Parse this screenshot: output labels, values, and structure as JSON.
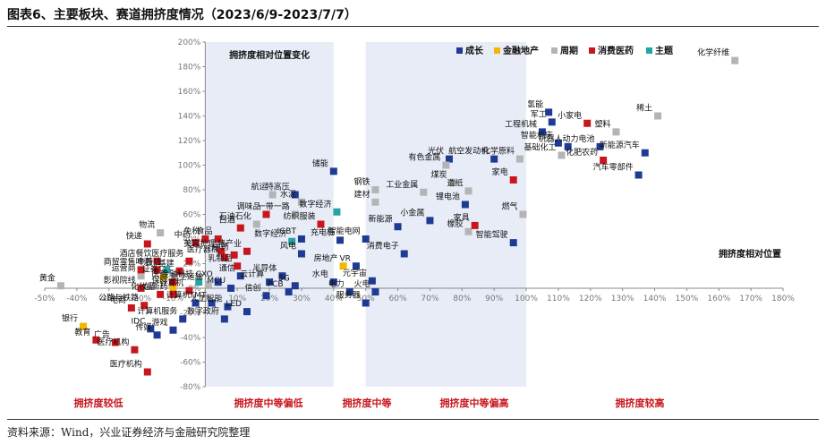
{
  "title": "图表6、主要板块、赛道拥挤度情况（2023/6/9-2023/7/7）",
  "source": "资料来源：Wind，兴业证券经济与金融研究院整理",
  "chart_data": {
    "type": "scatter",
    "xlim": [
      -50,
      180
    ],
    "ylim": [
      -80,
      200
    ],
    "xticks": [
      "-50%",
      "-40%",
      "-30%",
      "-20%",
      "-10%",
      "0%",
      "10%",
      "20%",
      "30%",
      "40%",
      "50%",
      "60%",
      "70%",
      "80%",
      "90%",
      "100%",
      "110%",
      "120%",
      "130%",
      "140%",
      "150%",
      "160%",
      "170%",
      "180%"
    ],
    "yticks": [
      "200%",
      "180%",
      "160%",
      "140%",
      "120%",
      "100%",
      "80%",
      "60%",
      "40%",
      "20%",
      "0%",
      "-20%",
      "-40%",
      "-60%",
      "-80%"
    ],
    "grid": false,
    "legend_position": "top-right",
    "x_axis_title": "拥挤度相对位置",
    "bands": [
      {
        "x0": 0,
        "x1": 40,
        "label": "拥挤度相对位置变化"
      },
      {
        "x0": 50,
        "x1": 100,
        "label": ""
      }
    ],
    "zone_labels": [
      "拥挤度较低",
      "拥挤度中等偏低",
      "拥挤度中等",
      "拥挤度中等偏高",
      "拥挤度较高"
    ],
    "colors": {
      "成长": "#1f3a93",
      "金融地产": "#f2b701",
      "周期": "#b4b4b4",
      "消费医药": "#c8161d",
      "主题": "#25a4a4"
    },
    "series": [
      {
        "name": "成长",
        "points": [
          {
            "x": 108,
            "y": 135,
            "label": "军工"
          },
          {
            "x": 113,
            "y": 115,
            "label": "机器人"
          },
          {
            "x": 123,
            "y": 115,
            "label": "动力电池"
          },
          {
            "x": 105,
            "y": 127,
            "label": "工程机械"
          },
          {
            "x": 110,
            "y": 118,
            "label": "智能机床"
          },
          {
            "x": 107,
            "y": 143,
            "label": "氢能"
          },
          {
            "x": 137,
            "y": 110,
            "label": "新能源汽车"
          },
          {
            "x": 135,
            "y": 92,
            "label": "汽车零部件"
          },
          {
            "x": 90,
            "y": 105,
            "label": "航空发动机"
          },
          {
            "x": 76,
            "y": 105,
            "label": "光伏"
          },
          {
            "x": 81,
            "y": 68,
            "label": "锂电池"
          },
          {
            "x": 70,
            "y": 55,
            "label": "小金属"
          },
          {
            "x": 60,
            "y": 50,
            "label": "新能源"
          },
          {
            "x": 96,
            "y": 37,
            "label": "智能驾驶"
          },
          {
            "x": 62,
            "y": 28,
            "label": "消费电子"
          },
          {
            "x": 42,
            "y": 39,
            "label": "充电桩"
          },
          {
            "x": 30,
            "y": 40,
            "label": "IGBT"
          },
          {
            "x": 30,
            "y": 28,
            "label": "风电"
          },
          {
            "x": 50,
            "y": 40,
            "label": "智能电网"
          },
          {
            "x": 28,
            "y": 76,
            "label": "特高压"
          },
          {
            "x": 40,
            "y": 95,
            "label": "储能"
          },
          {
            "x": 47,
            "y": 18,
            "label": "VR"
          },
          {
            "x": 52,
            "y": 6,
            "label": "元宇宙"
          },
          {
            "x": 40,
            "y": 5,
            "label": "水电"
          },
          {
            "x": 53,
            "y": -3,
            "label": "火电"
          },
          {
            "x": 45,
            "y": -3,
            "label": "电力"
          },
          {
            "x": 50,
            "y": -12,
            "label": "服务器"
          },
          {
            "x": 28,
            "y": 2,
            "label": "5G"
          },
          {
            "x": 26,
            "y": -3,
            "label": "PCB"
          },
          {
            "x": 24,
            "y": 10,
            "label": "半导体"
          },
          {
            "x": 20,
            "y": 5,
            "label": "云计算"
          },
          {
            "x": 19,
            "y": -6,
            "label": "信创"
          },
          {
            "x": 11,
            "y": 10,
            "label": "通信"
          },
          {
            "x": 13,
            "y": -19,
            "label": "LED"
          },
          {
            "x": 7,
            "y": -15,
            "label": "人工智能"
          },
          {
            "x": 2,
            "y": -12,
            "label": "TMT"
          },
          {
            "x": -3,
            "y": -12,
            "label": "计算机"
          },
          {
            "x": 6,
            "y": -25,
            "label": "数字政府"
          },
          {
            "x": 8,
            "y": 0,
            "label": "MCU"
          },
          {
            "x": 4,
            "y": 5,
            "label": "CXO"
          },
          {
            "x": -7,
            "y": -25,
            "label": "计算机服务"
          },
          {
            "x": -10,
            "y": -34,
            "label": "游戏"
          },
          {
            "x": -17,
            "y": -33,
            "label": "IDC"
          },
          {
            "x": -15,
            "y": -38,
            "label": "传媒"
          }
        ]
      },
      {
        "name": "金融地产",
        "points": [
          {
            "x": -38,
            "y": -31,
            "label": "银行"
          },
          {
            "x": -13,
            "y": 9,
            "label": "证券"
          },
          {
            "x": -10,
            "y": 0,
            "label": "保险"
          },
          {
            "x": 43,
            "y": 18,
            "label": "房地产"
          }
        ]
      },
      {
        "name": "周期",
        "points": [
          {
            "x": 165,
            "y": 185,
            "label": "化学纤维"
          },
          {
            "x": 141,
            "y": 140,
            "label": "稀土"
          },
          {
            "x": 128,
            "y": 127,
            "label": "塑料"
          },
          {
            "x": 111,
            "y": 108,
            "label": "基础化工"
          },
          {
            "x": 98,
            "y": 105,
            "label": "化学原料"
          },
          {
            "x": 75,
            "y": 100,
            "label": "有色金属"
          },
          {
            "x": 77,
            "y": 86,
            "label": "煤炭"
          },
          {
            "x": 82,
            "y": 79,
            "label": "造纸"
          },
          {
            "x": 68,
            "y": 78,
            "label": "工业金属"
          },
          {
            "x": 53,
            "y": 80,
            "label": "钢铁"
          },
          {
            "x": 53,
            "y": 70,
            "label": "建材"
          },
          {
            "x": 30,
            "y": 70,
            "label": "水泥"
          },
          {
            "x": 28,
            "y": 60,
            "label": "一带一路"
          },
          {
            "x": 21,
            "y": 76,
            "label": "航运"
          },
          {
            "x": 16,
            "y": 52,
            "label": "石油石化"
          },
          {
            "x": -14,
            "y": 45,
            "label": "物流"
          },
          {
            "x": 99,
            "y": 60,
            "label": "燃气"
          },
          {
            "x": 82,
            "y": 46,
            "label": "橡胶"
          },
          {
            "x": 1,
            "y": 3,
            "label": "航空运输"
          },
          {
            "x": -20,
            "y": 10,
            "label": "运营商"
          },
          {
            "x": -45,
            "y": 2,
            "label": "黄金"
          }
        ]
      },
      {
        "name": "消费医药",
        "points": [
          {
            "x": 119,
            "y": 134,
            "label": "小家电"
          },
          {
            "x": 124,
            "y": 104,
            "label": "化肥农药"
          },
          {
            "x": 96,
            "y": 88,
            "label": "家电"
          },
          {
            "x": 84,
            "y": 51,
            "label": "家具"
          },
          {
            "x": 36,
            "y": 52,
            "label": "纺织服装"
          },
          {
            "x": 19,
            "y": 60,
            "label": "调味品"
          },
          {
            "x": 11,
            "y": 49,
            "label": "白酒"
          },
          {
            "x": 13,
            "y": 30,
            "label": "猪产业"
          },
          {
            "x": 5,
            "y": 30,
            "label": "美容护理"
          },
          {
            "x": 4,
            "y": 40,
            "label": "食品"
          },
          {
            "x": 0,
            "y": 40,
            "label": "免税"
          },
          {
            "x": -3,
            "y": 37,
            "label": "中药"
          },
          {
            "x": 6,
            "y": 25,
            "label": "医疗器械"
          },
          {
            "x": 9,
            "y": 27,
            "label": "中药"
          },
          {
            "x": 10,
            "y": 18,
            "label": "乳制品"
          },
          {
            "x": -5,
            "y": 22,
            "label": "医疗服务"
          },
          {
            "x": -8,
            "y": 14,
            "label": "基建"
          },
          {
            "x": -18,
            "y": 36,
            "label": "快递"
          },
          {
            "x": -15,
            "y": 22,
            "label": "酒店餐饮"
          },
          {
            "x": -20,
            "y": 15,
            "label": "商贸零售"
          },
          {
            "x": -15,
            "y": 15,
            "label": "啤酒"
          },
          {
            "x": -20,
            "y": 0,
            "label": "影视院线"
          },
          {
            "x": -10,
            "y": 5,
            "label": "医药"
          },
          {
            "x": -14,
            "y": -5,
            "label": "化妆品"
          },
          {
            "x": -19,
            "y": -14,
            "label": "公路与铁路"
          },
          {
            "x": -23,
            "y": -16,
            "label": "电商"
          },
          {
            "x": -10,
            "y": -5,
            "label": "创新药"
          },
          {
            "x": -5,
            "y": -2,
            "label": "计算机"
          },
          {
            "x": -28,
            "y": -44,
            "label": "广告"
          },
          {
            "x": -34,
            "y": -42,
            "label": "教育"
          },
          {
            "x": -22,
            "y": -50,
            "label": "医疗机构"
          },
          {
            "x": -18,
            "y": -68,
            "label": "医疗机构"
          }
        ]
      },
      {
        "name": "主题",
        "points": [
          {
            "x": 41,
            "y": 62,
            "label": "数字经济"
          },
          {
            "x": 27,
            "y": 38,
            "label": "数字经济"
          },
          {
            "x": -12,
            "y": 15,
            "label": "中特估"
          },
          {
            "x": -2,
            "y": 5,
            "label": "金融科技"
          }
        ]
      }
    ]
  }
}
